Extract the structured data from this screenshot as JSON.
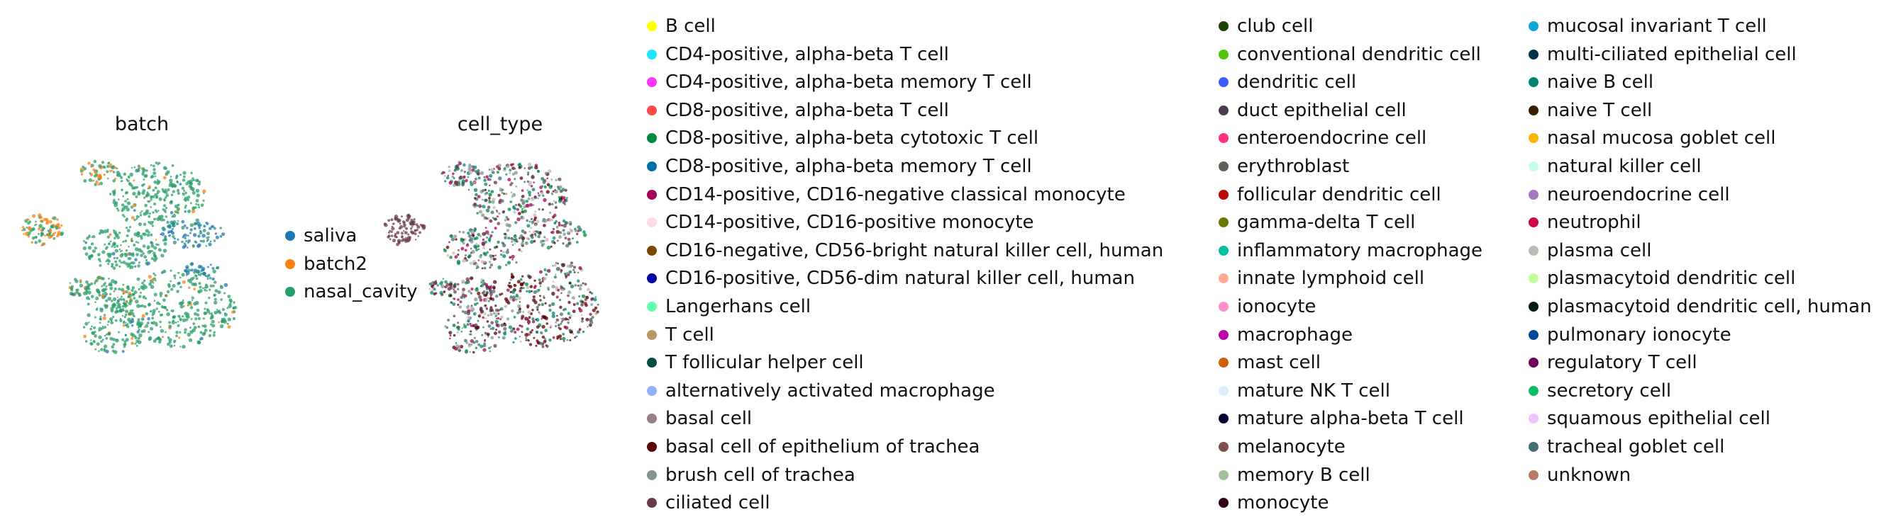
{
  "chart_data": [
    {
      "type": "scatter",
      "title": "batch",
      "legend_position": "right",
      "series": [
        {
          "name": "saliva",
          "color": "#1f77b4"
        },
        {
          "name": "batch2",
          "color": "#ff7f0e"
        },
        {
          "name": "nasal_cavity",
          "color": "#279e68"
        }
      ]
    },
    {
      "type": "scatter",
      "title": "cell_type",
      "legend_position": "right",
      "series": [
        {
          "name": "B cell",
          "color": "#ffff00"
        },
        {
          "name": "CD4-positive, alpha-beta T cell",
          "color": "#1ce6ff"
        },
        {
          "name": "CD4-positive, alpha-beta memory T cell",
          "color": "#ff34ff"
        },
        {
          "name": "CD8-positive, alpha-beta T cell",
          "color": "#ff4a46"
        },
        {
          "name": "CD8-positive, alpha-beta cytotoxic T cell",
          "color": "#008941"
        },
        {
          "name": "CD8-positive, alpha-beta memory T cell",
          "color": "#006fa6"
        },
        {
          "name": "CD14-positive, CD16-negative classical monocyte",
          "color": "#a30059"
        },
        {
          "name": "CD14-positive, CD16-positive monocyte",
          "color": "#ffdbe5"
        },
        {
          "name": "CD16-negative, CD56-bright natural killer cell, human",
          "color": "#7a4900"
        },
        {
          "name": "CD16-positive, CD56-dim natural killer cell, human",
          "color": "#0000a6"
        },
        {
          "name": "Langerhans cell",
          "color": "#63ffac"
        },
        {
          "name": "T cell",
          "color": "#b79762"
        },
        {
          "name": "T follicular helper cell",
          "color": "#004d43"
        },
        {
          "name": "alternatively activated macrophage",
          "color": "#8fb0ff"
        },
        {
          "name": "basal cell",
          "color": "#997d87"
        },
        {
          "name": "basal cell of epithelium of trachea",
          "color": "#5a0007"
        },
        {
          "name": "brush cell of trachea",
          "color": "#809693"
        },
        {
          "name": "ciliated cell",
          "color": "#6a3a4c"
        },
        {
          "name": "club cell",
          "color": "#1b4400"
        },
        {
          "name": "conventional dendritic cell",
          "color": "#4fc601"
        },
        {
          "name": "dendritic cell",
          "color": "#3b5dff"
        },
        {
          "name": "duct epithelial cell",
          "color": "#4a3b53"
        },
        {
          "name": "enteroendocrine cell",
          "color": "#ff2f80"
        },
        {
          "name": "erythroblast",
          "color": "#61615a"
        },
        {
          "name": "follicular dendritic cell",
          "color": "#ba0900"
        },
        {
          "name": "gamma-delta T cell",
          "color": "#6b7900"
        },
        {
          "name": "inflammatory macrophage",
          "color": "#00c2a0"
        },
        {
          "name": "innate lymphoid cell",
          "color": "#ffaa92"
        },
        {
          "name": "ionocyte",
          "color": "#ff90c9"
        },
        {
          "name": "macrophage",
          "color": "#b903aa"
        },
        {
          "name": "mast cell",
          "color": "#d16100"
        },
        {
          "name": "mature NK T cell",
          "color": "#ddefff"
        },
        {
          "name": "mature alpha-beta T cell",
          "color": "#000035"
        },
        {
          "name": "melanocyte",
          "color": "#7b4f4b"
        },
        {
          "name": "memory B cell",
          "color": "#a1c299"
        },
        {
          "name": "monocyte",
          "color": "#300018"
        },
        {
          "name": "mucosal invariant T cell",
          "color": "#0aa6d8"
        },
        {
          "name": "multi-ciliated epithelial cell",
          "color": "#013349"
        },
        {
          "name": "naive B cell",
          "color": "#00846f"
        },
        {
          "name": "naive T cell",
          "color": "#372101"
        },
        {
          "name": "nasal mucosa goblet cell",
          "color": "#ffb500"
        },
        {
          "name": "natural killer cell",
          "color": "#c2ffed"
        },
        {
          "name": "neuroendocrine cell",
          "color": "#a079bf"
        },
        {
          "name": "neutrophil",
          "color": "#cc0744"
        },
        {
          "name": "plasma cell",
          "color": "#c0b9b2"
        },
        {
          "name": "plasmacytoid dendritic cell",
          "color": "#c2ff99"
        },
        {
          "name": "plasmacytoid dendritic cell, human",
          "color": "#001e09"
        },
        {
          "name": "pulmonary ionocyte",
          "color": "#00489c"
        },
        {
          "name": "regulatory T cell",
          "color": "#6f0062"
        },
        {
          "name": "secretory cell",
          "color": "#0cbd66"
        },
        {
          "name": "squamous epithelial cell",
          "color": "#eec3ff"
        },
        {
          "name": "tracheal goblet cell",
          "color": "#456d75"
        },
        {
          "name": "unknown",
          "color": "#b77b68"
        }
      ]
    }
  ]
}
